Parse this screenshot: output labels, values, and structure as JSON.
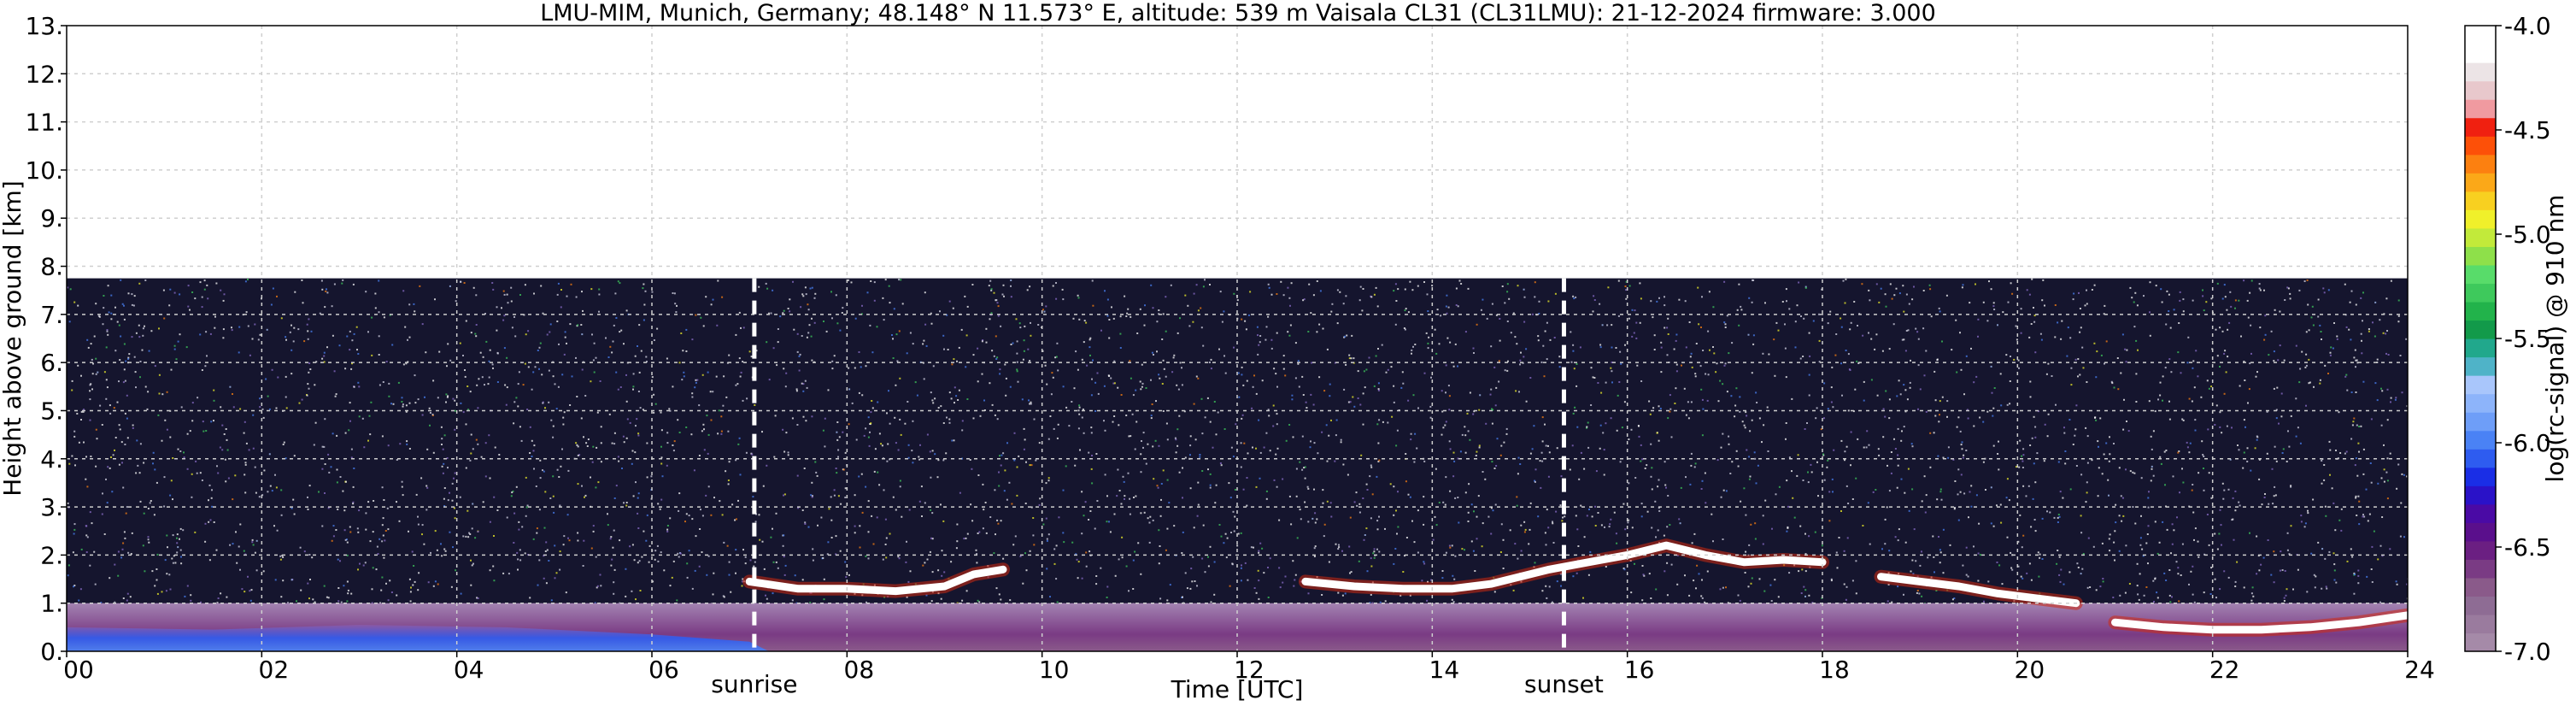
{
  "chart_data": {
    "type": "heatmap",
    "title": "LMU-MIM, Munich, Germany; 48.148° N 11.573° E, altitude: 539 m    Vaisala CL31 (CL31LMU): 21-12-2024    firmware: 3.000",
    "xlabel": "Time [UTC]",
    "ylabel": "Height above ground [km]",
    "xlim": [
      0,
      24
    ],
    "ylim": [
      0,
      13
    ],
    "x_ticks": [
      "00",
      "02",
      "04",
      "06",
      "08",
      "10",
      "12",
      "14",
      "16",
      "18",
      "20",
      "22",
      "24"
    ],
    "y_ticks": [
      "0.",
      "1.",
      "2.",
      "3.",
      "4.",
      "5.",
      "6.",
      "7.",
      "8.",
      "9.",
      "10.",
      "11.",
      "12.",
      "13."
    ],
    "grid": true,
    "data_ceiling_km": 7.75,
    "markers": [
      {
        "label": "sunrise",
        "time_h": 7.05
      },
      {
        "label": "sunset",
        "time_h": 15.35
      }
    ],
    "colorbar": {
      "label": "log(rc-signal) @ 910 nm",
      "min": -7.0,
      "max": -4.0,
      "ticks": [
        "-7.0",
        "-6.5",
        "-6.0",
        "-5.5",
        "-5.0",
        "-4.5",
        "-4.0"
      ],
      "colors": [
        "#a58aa8",
        "#9a7b9e",
        "#8e6c94",
        "#8a5a8a",
        "#7a3b84",
        "#6b1f82",
        "#5a0f8c",
        "#4a0aa5",
        "#2a12c8",
        "#1a2ee6",
        "#2e5cf0",
        "#4a82f5",
        "#6e9ef8",
        "#8db4fa",
        "#a9c6fb",
        "#4fb3c8",
        "#21a88c",
        "#129a4a",
        "#22b34b",
        "#3ec95c",
        "#58dc6a",
        "#8ee04a",
        "#c2ea3a",
        "#f0f02a",
        "#f8d020",
        "#fba818",
        "#fc8010",
        "#fd5008",
        "#f02010",
        "#f09aa0",
        "#e8c8cc",
        "#ece4e6",
        "#ffffff",
        "#ffffff"
      ]
    },
    "cloud_layers": [
      {
        "name": "",
        "points": [
          [
            7.0,
            1.45
          ],
          [
            7.5,
            1.3
          ],
          [
            8.0,
            1.3
          ],
          [
            8.5,
            1.25
          ],
          [
            9.0,
            1.35
          ],
          [
            9.3,
            1.6
          ],
          [
            9.6,
            1.7
          ]
        ]
      },
      {
        "name": "",
        "points": [
          [
            12.7,
            1.45
          ],
          [
            13.2,
            1.35
          ],
          [
            13.7,
            1.3
          ],
          [
            14.2,
            1.3
          ],
          [
            14.6,
            1.4
          ],
          [
            14.9,
            1.55
          ],
          [
            15.2,
            1.7
          ],
          [
            15.6,
            1.85
          ],
          [
            16.0,
            2.0
          ],
          [
            16.4,
            2.2
          ],
          [
            16.8,
            2.0
          ],
          [
            17.2,
            1.85
          ],
          [
            17.6,
            1.9
          ],
          [
            18.0,
            1.85
          ]
        ]
      },
      {
        "name": "",
        "points": [
          [
            18.6,
            1.55
          ],
          [
            19.0,
            1.45
          ],
          [
            19.4,
            1.35
          ],
          [
            19.8,
            1.2
          ],
          [
            20.2,
            1.1
          ],
          [
            20.6,
            1.0
          ]
        ]
      },
      {
        "name": "",
        "points": [
          [
            21.0,
            0.6
          ],
          [
            21.5,
            0.5
          ],
          [
            22.0,
            0.45
          ],
          [
            22.5,
            0.45
          ],
          [
            23.0,
            0.5
          ],
          [
            23.5,
            0.6
          ],
          [
            24.0,
            0.75
          ]
        ]
      }
    ],
    "boundary_layer_top_km": 1.0
  }
}
